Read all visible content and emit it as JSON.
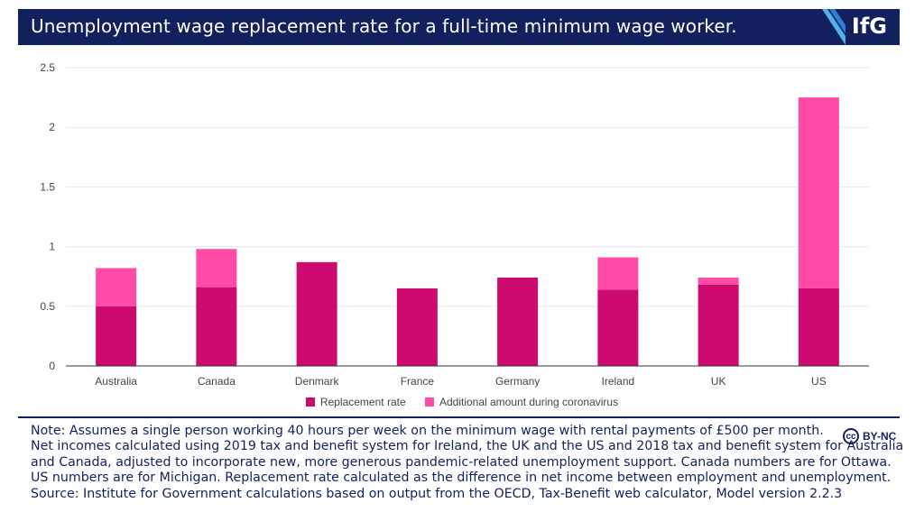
{
  "header": {
    "title": "Unemployment wage replacement rate for a full-time minimum wage worker.",
    "logo": "IfG"
  },
  "chart_data": {
    "type": "bar",
    "stacked": true,
    "categories": [
      "Australia",
      "Canada",
      "Denmark",
      "France",
      "Germany",
      "Ireland",
      "UK",
      "US"
    ],
    "series": [
      {
        "name": "Replacement rate",
        "values": [
          0.5,
          0.66,
          0.87,
          0.65,
          0.74,
          0.64,
          0.68,
          0.65
        ],
        "color": "#cc0a6f"
      },
      {
        "name": "Additional amount during coronavirus",
        "values": [
          0.32,
          0.32,
          0,
          0,
          0,
          0.27,
          0.06,
          1.6
        ],
        "color": "#ff4aa6"
      }
    ],
    "yticks": [
      "0",
      "0.5",
      "1",
      "1.5",
      "2",
      "2.5"
    ],
    "ylim": [
      0,
      2.5
    ],
    "grid": true,
    "legend_position": "bottom"
  },
  "note": {
    "lines": [
      "Note: Assumes a single person working 40 hours per week on the minimum wage with rental payments of £500 per month.",
      "Net incomes calculated using 2019 tax and benefit system for Ireland, the UK and the US and 2018 tax and benefit system for Australia",
      "and Canada, adjusted to incorporate new, more generous pandemic-related unemployment support. Canada numbers are for Ottawa.",
      "US numbers are for Michigan. Replacement rate calculated as the difference in net income between employment and unemployment.",
      "Source: Institute for Government calculations based on output from the  OECD, Tax-Benefit web calculator, Model version 2.2.3"
    ]
  },
  "license": {
    "icon_text": "cc",
    "label": "BY-NC"
  }
}
